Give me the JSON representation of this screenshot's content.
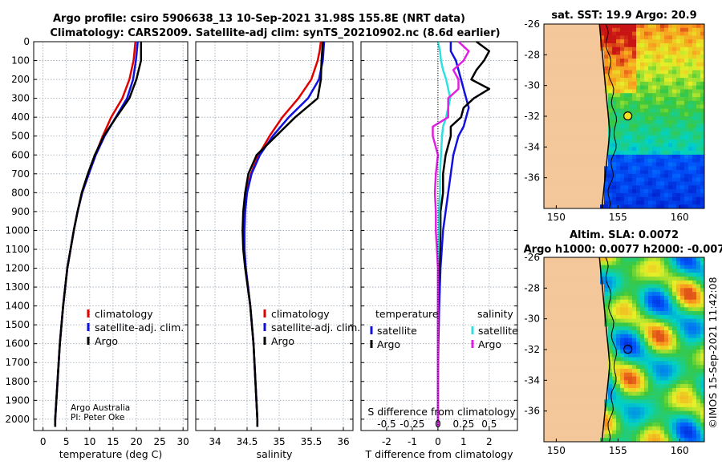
{
  "title_line1": "Argo profile: csiro 5906638_13 10-Sep-2021 31.98S 155.8E (NRT data)",
  "title_line2": "Climatology: CARS2009. Satellite-adj clim: synTS_20210902.nc (8.6d earlier)",
  "credit_line1": "Argo Australia",
  "credit_line2": "PI: Peter Oke",
  "watermark": "©IMOS 15-Sep-2021 11:42:08",
  "colors": {
    "climatology": "#e00000",
    "satellite": "#1010e0",
    "argo": "#000000",
    "sat_salinity": "#30e0e0",
    "argo_salinity": "#e020e0"
  },
  "chart_data": [
    {
      "type": "line",
      "name": "temperature",
      "xlabel": "temperature (deg C)",
      "ylabel": "",
      "xlim": [
        -2,
        31
      ],
      "ylim": [
        2060,
        0
      ],
      "xticks": [
        "0",
        "5",
        "10",
        "15",
        "20",
        "25",
        "30"
      ],
      "yticks": [
        "0",
        "100",
        "200",
        "300",
        "400",
        "500",
        "600",
        "700",
        "800",
        "900",
        "1000",
        "1100",
        "1200",
        "1300",
        "1400",
        "1500",
        "1600",
        "1700",
        "1800",
        "1900",
        "2000"
      ],
      "grid": true,
      "legend": [
        "climatology",
        "satellite-adj. clim.",
        "Argo"
      ],
      "legend_position": "middle-right",
      "depth": [
        0,
        50,
        100,
        200,
        300,
        400,
        500,
        600,
        700,
        800,
        900,
        1000,
        1200,
        1400,
        1600,
        1800,
        2000,
        2040
      ],
      "series": [
        {
          "name": "climatology",
          "values": [
            19.8,
            19.6,
            19.4,
            18.5,
            17.0,
            14.6,
            12.8,
            11.2,
            9.8,
            8.4,
            7.4,
            6.6,
            5.2,
            4.3,
            3.6,
            3.1,
            2.6,
            2.6
          ]
        },
        {
          "name": "satellite-adj. clim.",
          "values": [
            20.3,
            20.1,
            19.9,
            19.3,
            18.0,
            15.6,
            13.2,
            11.3,
            9.8,
            8.4,
            7.4,
            6.6,
            5.2,
            4.3,
            3.6,
            3.1,
            2.6,
            2.6
          ]
        },
        {
          "name": "Argo",
          "values": [
            21.0,
            21.0,
            21.0,
            20.0,
            18.5,
            15.7,
            13.0,
            11.1,
            9.6,
            8.3,
            7.4,
            6.6,
            5.2,
            4.3,
            3.6,
            3.1,
            2.6,
            2.6
          ]
        }
      ]
    },
    {
      "type": "line",
      "name": "salinity",
      "xlabel": "salinity",
      "xlim": [
        33.7,
        36.15
      ],
      "ylim": [
        2060,
        0
      ],
      "xticks": [
        "34",
        "34.5",
        "35",
        "35.5",
        "36"
      ],
      "grid": true,
      "legend": [
        "climatology",
        "satellite-adj. clim.",
        "Argo"
      ],
      "legend_position": "middle-right",
      "depth": [
        0,
        50,
        100,
        200,
        300,
        400,
        500,
        600,
        700,
        800,
        900,
        1000,
        1100,
        1200,
        1400,
        1600,
        1800,
        2000,
        2040
      ],
      "series": [
        {
          "name": "climatology",
          "values": [
            35.65,
            35.63,
            35.6,
            35.5,
            35.3,
            35.05,
            34.85,
            34.68,
            34.56,
            34.49,
            34.46,
            34.45,
            34.45,
            34.48,
            34.55,
            34.6,
            34.63,
            34.66,
            34.66
          ]
        },
        {
          "name": "satellite-adj. clim.",
          "values": [
            35.7,
            35.69,
            35.68,
            35.62,
            35.45,
            35.15,
            34.9,
            34.7,
            34.57,
            34.5,
            34.47,
            34.46,
            34.46,
            34.48,
            34.55,
            34.6,
            34.63,
            34.66,
            34.66
          ]
        },
        {
          "name": "Argo",
          "values": [
            35.68,
            35.67,
            35.66,
            35.65,
            35.6,
            35.25,
            34.95,
            34.65,
            34.52,
            34.47,
            34.44,
            34.43,
            34.44,
            34.47,
            34.55,
            34.6,
            34.63,
            34.66,
            34.66
          ]
        }
      ]
    },
    {
      "type": "line",
      "name": "difference",
      "xlabel": "T difference from climatology",
      "top_xlabel": "S difference from climatology",
      "xlim": [
        -3,
        3.1
      ],
      "ylim": [
        2060,
        0
      ],
      "xticks": [
        "-2",
        "-1",
        "0",
        "1",
        "2"
      ],
      "top_xticks": [
        "-0.5",
        "-0.25",
        "0",
        "0.25",
        "0.5"
      ],
      "grid": true,
      "legend_left_title": "temperature",
      "legend_right_title": "salinity",
      "legend_left": [
        "satellite",
        "Argo"
      ],
      "legend_right": [
        "satellite",
        "Argo"
      ],
      "legend_position": "middle",
      "depth": [
        0,
        50,
        100,
        150,
        200,
        250,
        300,
        350,
        400,
        450,
        500,
        600,
        700,
        800,
        900,
        1000,
        1200,
        1400,
        1600,
        1800,
        2000,
        2040
      ],
      "series": [
        {
          "name": "T satellite",
          "values": [
            0.5,
            0.5,
            0.7,
            0.8,
            0.9,
            1.0,
            1.1,
            1.2,
            1.1,
            1.0,
            0.8,
            0.6,
            0.5,
            0.4,
            0.3,
            0.2,
            0.1,
            0.05,
            0.02,
            0.0,
            0.0,
            0.0
          ]
        },
        {
          "name": "T Argo",
          "values": [
            1.5,
            2.0,
            1.8,
            1.5,
            1.3,
            2.0,
            1.4,
            1.0,
            0.9,
            0.5,
            0.5,
            0.3,
            0.2,
            0.2,
            0.1,
            0.1,
            0.05,
            0.0,
            0.0,
            0.0,
            0.0,
            0.0
          ]
        },
        {
          "name": "S satellite",
          "values": [
            0.0,
            0.02,
            0.03,
            0.05,
            0.08,
            0.1,
            0.12,
            0.1,
            0.08,
            0.05,
            0.04,
            0.03,
            0.02,
            0.02,
            0.01,
            0.01,
            0.0,
            0.0,
            0.0,
            0.0,
            0.0,
            0.0
          ]
        },
        {
          "name": "S Argo",
          "values": [
            0.2,
            0.3,
            0.25,
            0.15,
            0.2,
            0.2,
            0.1,
            0.1,
            0.1,
            -0.05,
            -0.05,
            0.0,
            -0.02,
            -0.03,
            -0.02,
            -0.02,
            0.0,
            0.0,
            0.0,
            0.0,
            0.0,
            0.0
          ]
        }
      ]
    },
    {
      "type": "heatmap",
      "name": "sst_map",
      "title": "sat. SST: 19.9 Argo: 20.9",
      "xlim": [
        149,
        162
      ],
      "ylim": [
        -38,
        -26
      ],
      "xticks": [
        "150",
        "155",
        "160"
      ],
      "yticks": [
        "-26",
        "-28",
        "-30",
        "-32",
        "-34",
        "-36"
      ],
      "argo_position": [
        155.8,
        -31.98
      ]
    },
    {
      "type": "heatmap",
      "name": "sla_map",
      "title": "Altim. SLA: 0.0072",
      "subtitle": "Argo h1000: 0.0077 h2000: -0.007",
      "xlim": [
        149,
        162
      ],
      "ylim": [
        -38,
        -26
      ],
      "xticks": [
        "150",
        "155",
        "160"
      ],
      "yticks": [
        "-26",
        "-28",
        "-30",
        "-32",
        "-34",
        "-36"
      ],
      "argo_position": [
        155.8,
        -31.98
      ]
    }
  ]
}
